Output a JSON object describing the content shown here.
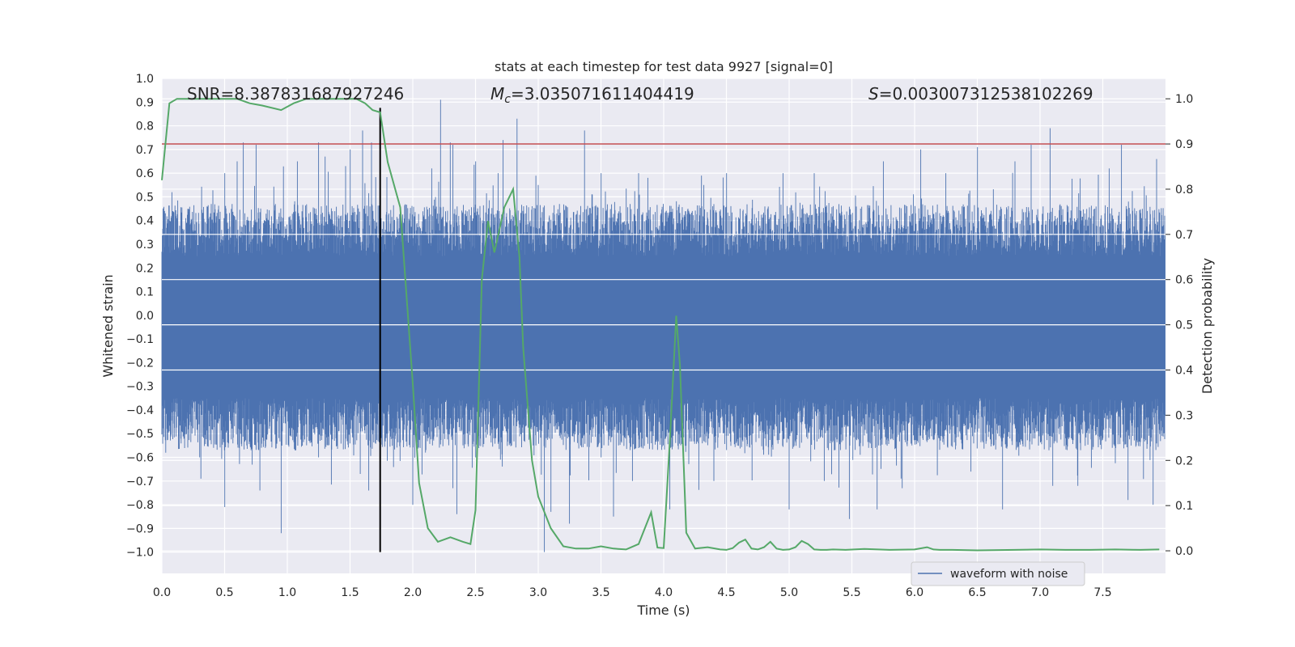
{
  "chart_data": {
    "type": "line",
    "title": "stats at each timestep for test data 9927 [signal=0]",
    "xlabel": "Time (s)",
    "ylabel": "Whitened strain",
    "y2label": "Detection probability",
    "xlim": [
      0.0,
      8.0
    ],
    "ylim": [
      -1.09,
      1.0
    ],
    "y2lim": [
      -0.05,
      1.045
    ],
    "x_ticks": [
      0.0,
      0.5,
      1.0,
      1.5,
      2.0,
      2.5,
      3.0,
      3.5,
      4.0,
      4.5,
      5.0,
      5.5,
      6.0,
      6.5,
      7.0,
      7.5
    ],
    "y_ticks": [
      1.0,
      0.9,
      0.8,
      0.7,
      0.6,
      0.5,
      0.4,
      0.3,
      0.2,
      0.1,
      0.0,
      -0.1,
      -0.2,
      -0.3,
      -0.4,
      -0.5,
      -0.6,
      -0.7,
      -0.8,
      -0.9,
      -1.0
    ],
    "y2_ticks": [
      1.0,
      0.9,
      0.8,
      0.7,
      0.6,
      0.5,
      0.4,
      0.3,
      0.2,
      0.1,
      0.0
    ],
    "grid": true,
    "legend_position": "bottom-right",
    "annotations": {
      "snr": "SNR=8.387831687927246",
      "mc_symbol": "M",
      "mc_sub": "c",
      "mc_value": "=3.035071611404419",
      "s_symbol": "S",
      "s_value": "=0.003007312538102269"
    },
    "threshold_y": 0.72,
    "vline_x": 1.74,
    "series": [
      {
        "name": "waveform with noise",
        "axis": "left",
        "color": "#4c72b0",
        "envelope_upper_typical": 0.3,
        "envelope_lower_typical": -0.4,
        "peaks_upper": [
          [
            0.08,
            0.52
          ],
          [
            0.5,
            0.6
          ],
          [
            0.6,
            0.65
          ],
          [
            0.65,
            0.73
          ],
          [
            0.75,
            0.72
          ],
          [
            1.08,
            0.65
          ],
          [
            1.25,
            0.73
          ],
          [
            1.3,
            0.67
          ],
          [
            1.5,
            0.7
          ],
          [
            1.6,
            0.78
          ],
          [
            1.67,
            0.73
          ],
          [
            2.15,
            0.62
          ],
          [
            2.22,
            0.91
          ],
          [
            2.3,
            0.73
          ],
          [
            2.32,
            0.72
          ],
          [
            2.5,
            0.65
          ],
          [
            2.68,
            0.6
          ],
          [
            2.72,
            0.74
          ],
          [
            2.83,
            0.83
          ],
          [
            3.0,
            0.55
          ],
          [
            3.37,
            0.78
          ],
          [
            3.5,
            0.6
          ],
          [
            3.8,
            0.6
          ],
          [
            4.3,
            0.59
          ],
          [
            4.5,
            0.6
          ],
          [
            4.95,
            0.6
          ],
          [
            5.2,
            0.6
          ],
          [
            5.75,
            0.65
          ],
          [
            6.05,
            0.7
          ],
          [
            6.25,
            0.6
          ],
          [
            6.5,
            0.71
          ],
          [
            6.8,
            0.65
          ],
          [
            6.93,
            0.72
          ],
          [
            7.08,
            0.79
          ],
          [
            7.55,
            0.62
          ],
          [
            7.65,
            0.72
          ],
          [
            7.93,
            0.66
          ]
        ],
        "peaks_lower": [
          [
            0.03,
            -0.58
          ],
          [
            0.3,
            -0.6
          ],
          [
            0.31,
            -0.69
          ],
          [
            0.5,
            -0.81
          ],
          [
            0.78,
            -0.74
          ],
          [
            0.95,
            -0.92
          ],
          [
            1.25,
            -0.6
          ],
          [
            1.58,
            -0.67
          ],
          [
            1.65,
            -0.74
          ],
          [
            2.0,
            -0.8
          ],
          [
            2.32,
            -0.73
          ],
          [
            2.35,
            -0.84
          ],
          [
            2.5,
            -0.6
          ],
          [
            3.05,
            -1.0
          ],
          [
            3.1,
            -0.83
          ],
          [
            3.25,
            -0.88
          ],
          [
            3.5,
            -0.6
          ],
          [
            3.6,
            -0.85
          ],
          [
            3.75,
            -0.7
          ],
          [
            4.05,
            -0.82
          ],
          [
            4.4,
            -0.7
          ],
          [
            5.0,
            -0.82
          ],
          [
            5.28,
            -0.7
          ],
          [
            5.48,
            -0.86
          ],
          [
            5.7,
            -0.82
          ],
          [
            5.9,
            -0.73
          ],
          [
            6.45,
            -0.66
          ],
          [
            6.7,
            -0.82
          ],
          [
            7.1,
            -0.72
          ],
          [
            7.3,
            -0.72
          ],
          [
            7.7,
            -0.78
          ],
          [
            7.9,
            -0.8
          ]
        ]
      },
      {
        "name": "",
        "axis": "right",
        "color": "#55a868",
        "x": [
          0.0,
          0.06,
          0.12,
          0.2,
          0.3,
          0.45,
          0.6,
          0.7,
          0.8,
          0.95,
          1.05,
          1.15,
          1.3,
          1.45,
          1.55,
          1.62,
          1.68,
          1.74,
          1.8,
          1.9,
          2.0,
          2.05,
          2.12,
          2.2,
          2.3,
          2.4,
          2.46,
          2.5,
          2.55,
          2.6,
          2.65,
          2.73,
          2.8,
          2.85,
          2.88,
          2.95,
          3.0,
          3.1,
          3.2,
          3.3,
          3.4,
          3.5,
          3.6,
          3.7,
          3.8,
          3.9,
          3.95,
          4.0,
          4.05,
          4.1,
          4.13,
          4.18,
          4.25,
          4.35,
          4.45,
          4.5,
          4.55,
          4.6,
          4.65,
          4.7,
          4.75,
          4.8,
          4.85,
          4.9,
          4.95,
          5.0,
          5.05,
          5.1,
          5.15,
          5.2,
          5.25,
          5.3,
          5.35,
          5.45,
          5.6,
          5.8,
          6.0,
          6.1,
          6.15,
          6.2,
          6.3,
          6.5,
          6.8,
          7.0,
          7.2,
          7.4,
          7.6,
          7.8,
          7.95
        ],
        "y": [
          0.82,
          0.99,
          1.0,
          1.0,
          1.0,
          1.0,
          1.0,
          0.99,
          0.985,
          0.975,
          0.99,
          1.0,
          1.0,
          1.0,
          1.0,
          0.99,
          0.975,
          0.97,
          0.86,
          0.76,
          0.37,
          0.15,
          0.05,
          0.02,
          0.03,
          0.02,
          0.015,
          0.09,
          0.6,
          0.73,
          0.66,
          0.76,
          0.8,
          0.65,
          0.45,
          0.2,
          0.12,
          0.05,
          0.01,
          0.005,
          0.005,
          0.01,
          0.005,
          0.003,
          0.015,
          0.085,
          0.007,
          0.006,
          0.25,
          0.52,
          0.41,
          0.04,
          0.005,
          0.008,
          0.003,
          0.002,
          0.006,
          0.018,
          0.025,
          0.005,
          0.003,
          0.008,
          0.02,
          0.005,
          0.002,
          0.003,
          0.008,
          0.022,
          0.015,
          0.003,
          0.002,
          0.002,
          0.003,
          0.002,
          0.004,
          0.002,
          0.003,
          0.008,
          0.003,
          0.002,
          0.002,
          0.001,
          0.002,
          0.003,
          0.002,
          0.002,
          0.003,
          0.002,
          0.003
        ]
      },
      {
        "name": "",
        "axis": "right",
        "color": "#c44e52",
        "kind": "threshold",
        "y": [
          0.9,
          0.9
        ]
      }
    ]
  }
}
